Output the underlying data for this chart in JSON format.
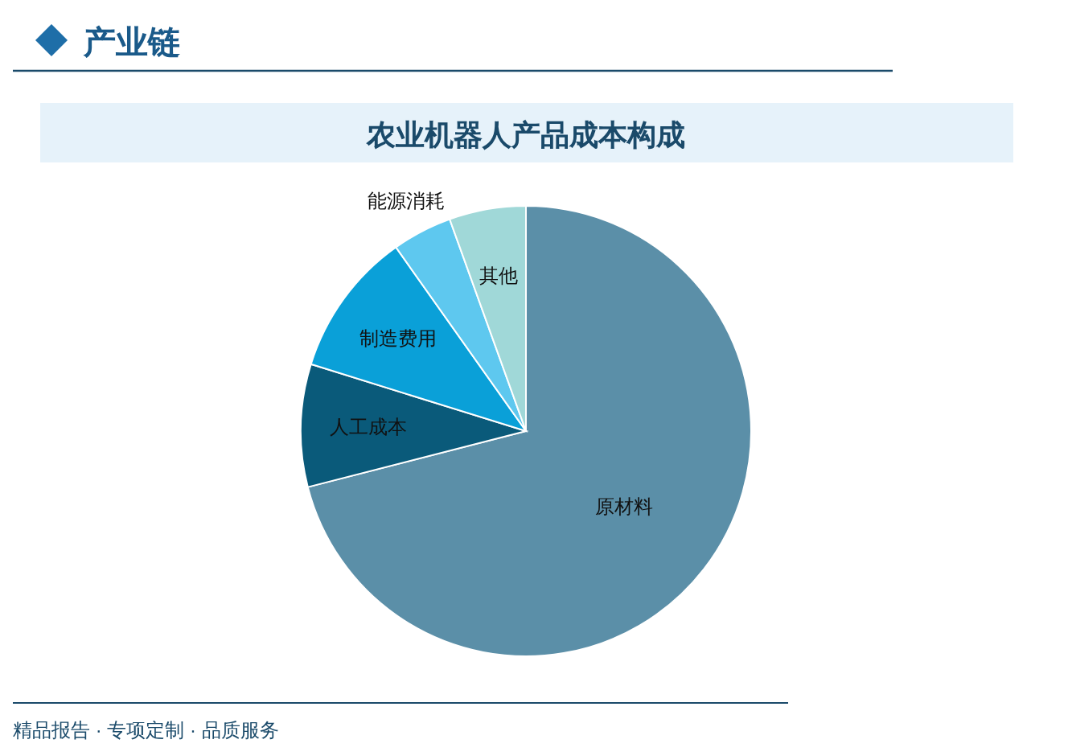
{
  "chart_data": {
    "type": "pie",
    "title": "农业机器人产品成本构成",
    "categories": [
      "原材料",
      "人工成本",
      "制造费用",
      "能源消耗",
      "其他"
    ],
    "values": [
      71,
      8.8,
      10.4,
      4.3,
      5.5
    ],
    "colors": [
      "#5b8fa8",
      "#0a5a7a",
      "#0aa0d8",
      "#5ec8ef",
      "#a0d8d8"
    ],
    "annotations": [
      "产业链",
      "精品报告 · 专项定制 · 品质服务"
    ],
    "legend": false
  }
}
